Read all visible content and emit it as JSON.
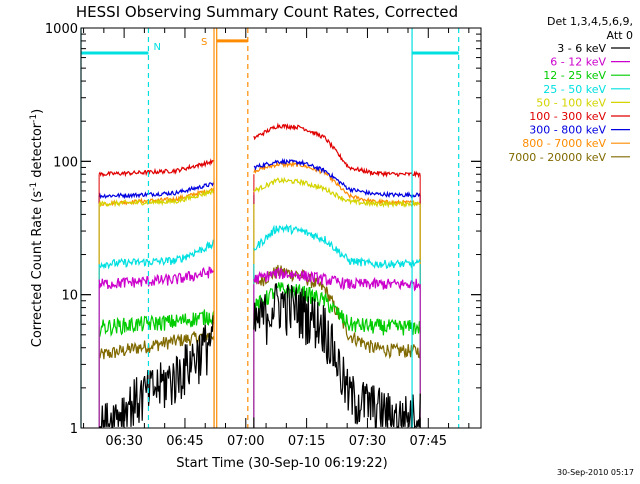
{
  "chart_data": {
    "type": "line",
    "title": "HESSI Observing Summary Count Rates, Corrected",
    "xlabel": "Start Time (30-Sep-10 06:19:22)",
    "ylabel": "Corrected Count Rate (s⁻¹ detector⁻¹)",
    "ylabel_parts": {
      "base": "Corrected Count Rate (s",
      "sup1": "-1",
      "mid": " detector",
      "sup2": "-1",
      "end": ")"
    },
    "x_unit": "time of day (30-Sep-2010)",
    "xlim": [
      "06:19:22",
      "07:58:00"
    ],
    "ylim": [
      1,
      1000
    ],
    "y_scale": "log",
    "x_ticks": [
      "06:30",
      "06:45",
      "07:00",
      "07:15",
      "07:30",
      "07:45"
    ],
    "y_ticks": [
      "1",
      "10",
      "100",
      "1000"
    ],
    "grid": false,
    "legend_position": "top-right outside",
    "legend_header": [
      "Det 1,3,4,5,6,9,",
      "Att 0"
    ],
    "timestamp": "30-Sep-2010 05:17",
    "markers": {
      "N_label": "N",
      "S_label": "S",
      "cyan_solid": [
        "06:19:22",
        "07:41:00"
      ],
      "cyan_dashed": [
        "06:36:00",
        "07:52:30"
      ],
      "orange_solid": [
        "06:52:10",
        "06:52:50"
      ],
      "orange_dashed": [
        "07:00:30"
      ],
      "N_bars": [
        {
          "from": "06:19:22",
          "to": "06:36:00",
          "y": 650
        },
        {
          "from": "07:41:00",
          "to": "07:52:30",
          "y": 650
        }
      ],
      "S_bar": {
        "from": "06:52:50",
        "to": "07:00:30",
        "y": 800
      }
    },
    "segments": [
      {
        "name": "pre",
        "from": "06:23:50",
        "to": "06:52:10"
      },
      {
        "name": "post",
        "from": "07:02:00",
        "to": "07:43:00"
      }
    ],
    "series": [
      {
        "name": "3 - 6 keV",
        "color": "#000000",
        "values": [
          [
            1,
            1.7,
            2.5,
            5
          ],
          [
            6,
            9,
            8,
            6,
            1.8,
            1.5,
            1.2,
            1.3
          ]
        ],
        "noise": 0.45
      },
      {
        "name": "6 - 12 keV",
        "color": "#cc00cc",
        "values": [
          [
            12,
            12.5,
            13,
            15
          ],
          [
            13,
            14.5,
            14,
            13,
            12,
            12,
            12,
            12
          ]
        ],
        "noise": 0.1
      },
      {
        "name": "12 - 25 keV",
        "color": "#00cc00",
        "values": [
          [
            5.7,
            6,
            6.3,
            7
          ],
          [
            8,
            11,
            10.5,
            9,
            6,
            5.8,
            5.7,
            5.7
          ]
        ],
        "noise": 0.14
      },
      {
        "name": "25 - 50 keV",
        "color": "#00e0e0",
        "values": [
          [
            17,
            17.5,
            18,
            24
          ],
          [
            22,
            32,
            30,
            26,
            18,
            17,
            17,
            17
          ]
        ],
        "noise": 0.07
      },
      {
        "name": "50 - 100 keV",
        "color": "#d4d400",
        "values": [
          [
            48,
            49,
            50,
            60
          ],
          [
            60,
            72,
            70,
            62,
            50,
            48,
            48,
            48
          ]
        ],
        "noise": 0.04
      },
      {
        "name": "100 - 300 keV",
        "color": "#e00000",
        "values": [
          [
            80,
            82,
            85,
            100
          ],
          [
            150,
            185,
            180,
            150,
            90,
            82,
            80,
            80
          ]
        ],
        "noise": 0.035
      },
      {
        "name": "300 - 800 keV",
        "color": "#0000e0",
        "values": [
          [
            55,
            56,
            58,
            68
          ],
          [
            90,
            100,
            98,
            85,
            62,
            57,
            56,
            56
          ]
        ],
        "noise": 0.035
      },
      {
        "name": "800 - 7000 keV",
        "color": "#ff8c00",
        "values": [
          [
            48,
            50,
            52,
            62
          ],
          [
            85,
            95,
            94,
            82,
            55,
            50,
            49,
            49
          ]
        ],
        "noise": 0.035
      },
      {
        "name": "7000 - 20000 keV",
        "color": "#806a00",
        "values": [
          [
            3.5,
            4,
            4.5,
            5
          ],
          [
            12,
            15,
            14,
            11,
            5,
            4,
            3.8,
            3.8
          ]
        ],
        "noise": 0.12
      }
    ]
  }
}
